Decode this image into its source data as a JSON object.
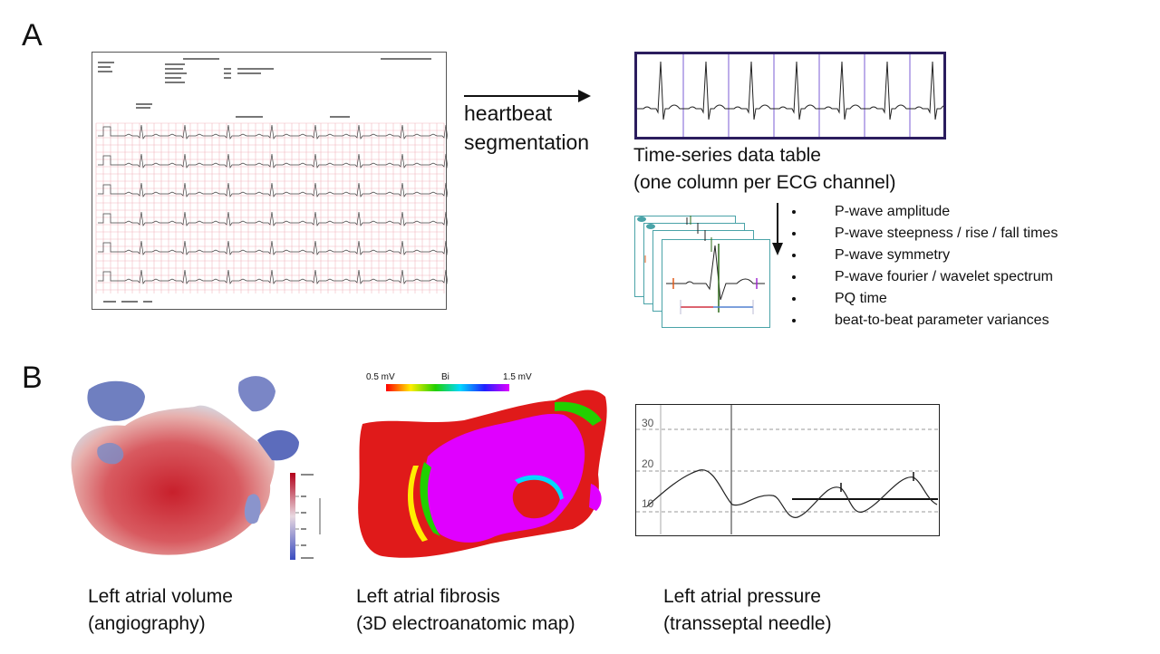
{
  "panels": {
    "a": "A",
    "b": "B"
  },
  "segmentation": {
    "line1": "heartbeat",
    "line2": "segmentation"
  },
  "timeseries": {
    "caption_line1": "Time-series data table",
    "caption_line2": "(one column per ECG channel)"
  },
  "features": [
    "P-wave amplitude",
    "P-wave  steepness / rise / fall times",
    "P-wave symmetry",
    "P-wave fourier / wavelet spectrum",
    "PQ time",
    "beat-to-beat parameter variances"
  ],
  "volume": {
    "caption_line1": "Left atrial volume",
    "caption_line2": "(angiography)"
  },
  "fibrosis": {
    "caption_line1": "Left atrial fibrosis",
    "caption_line2": "(3D electroanatomic map)",
    "scale_min": "0.5 mV",
    "scale_mid": "Bi",
    "scale_max": "1.5 mV"
  },
  "pressure": {
    "caption_line1": "Left atrial pressure",
    "caption_line2": "(transseptal needle)",
    "yticks": [
      "30",
      "20",
      "10"
    ]
  },
  "colors": {
    "ts_border": "#2b1d5e",
    "beat_divider": "#7b5cd6",
    "card_border": "#4aa3a8",
    "ecg_grid": "#f2b8c0",
    "fibrosis_red": "#e01a1a",
    "fibrosis_magenta": "#e000ff"
  }
}
